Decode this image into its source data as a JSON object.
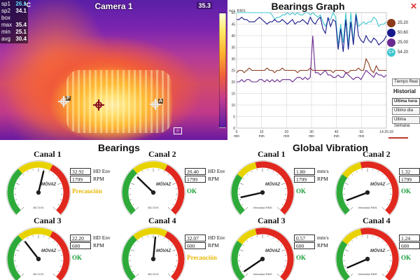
{
  "camera": {
    "title": "Camera 1",
    "unit": "°C",
    "top_right_value": "35.3",
    "readouts": [
      {
        "label": "sp1",
        "value": "26.1"
      },
      {
        "label": "sp2",
        "value": "34.1"
      },
      {
        "label": "box",
        "value": ""
      },
      {
        "label": "max",
        "value": "35.4"
      },
      {
        "label": "min",
        "value": "25.1"
      },
      {
        "label": "avg",
        "value": "30.4"
      }
    ],
    "spot_labels": [
      "P",
      "A"
    ]
  },
  "bearings_graph": {
    "title": "Bearings Graph",
    "y_axis_label": "m/s RMS",
    "close_icon": "close-icon",
    "legend": [
      {
        "value": "25.20",
        "color": "#8b3a1a"
      },
      {
        "value": "50.60",
        "color": "#1a1a8c"
      },
      {
        "value": "25.00",
        "color": "#6a2a90"
      },
      {
        "value": "54.20",
        "color": "#3fc7cf"
      }
    ],
    "legend_tag": "C4",
    "buttons": [
      {
        "label": "Tiempo Real",
        "active": false
      },
      {
        "label": "Última hora",
        "active": true
      },
      {
        "label": "Último día",
        "active": false
      },
      {
        "label": "Última Semana",
        "active": false
      }
    ],
    "historial_label": "Historial",
    "chart_data": {
      "type": "line",
      "x_ticks": [
        "0\nmin",
        "10\nmin",
        "20\nmin",
        "30\nmin",
        "40\nmin",
        "50\nmin",
        "14:25:18"
      ],
      "y_ticks": [
        "50",
        "45",
        "40",
        "35",
        "30",
        "25",
        "20",
        "15",
        "10",
        "5",
        "0"
      ],
      "ylim": [
        0,
        50
      ],
      "grid": true,
      "series": [
        {
          "color": "#3fc7cf",
          "values": [
            50,
            50,
            50,
            50,
            50,
            50,
            50,
            50,
            50,
            50,
            50,
            50,
            50,
            50,
            49,
            47,
            48,
            48,
            49,
            49,
            50,
            49,
            50,
            49,
            50,
            49,
            49,
            50,
            50,
            49,
            50,
            49,
            48,
            49,
            46,
            44,
            47,
            47,
            50,
            48,
            36,
            45,
            37,
            50,
            36,
            50,
            37,
            50,
            44,
            45,
            46,
            45,
            46,
            46,
            48,
            47,
            44,
            45,
            45,
            46
          ]
        },
        {
          "color": "#1a1a8c",
          "values": [
            47,
            47,
            48,
            47,
            47,
            46,
            46,
            46,
            47,
            48,
            47,
            46,
            45,
            46,
            46,
            47,
            46,
            46,
            47,
            46,
            45,
            46,
            47,
            45,
            46,
            46,
            47,
            46,
            45,
            48,
            46,
            45,
            47,
            48,
            43,
            41,
            48,
            44,
            47,
            46,
            34,
            43,
            33,
            47,
            34,
            46,
            36,
            49,
            40,
            38,
            37,
            40,
            38,
            37,
            39,
            38,
            36,
            37,
            38,
            40
          ]
        },
        {
          "color": "#8b3a1a",
          "values": [
            24,
            25,
            25,
            24,
            25,
            26,
            25,
            25,
            25,
            25,
            25,
            25,
            26,
            25,
            25,
            24,
            25,
            25,
            26,
            25,
            25,
            25,
            25,
            25,
            24,
            25,
            25,
            25,
            25,
            26,
            25,
            25,
            25,
            25,
            25,
            25,
            25,
            25,
            24,
            25,
            25,
            25,
            25,
            24,
            24,
            25,
            25,
            25,
            26,
            25,
            25,
            30,
            28,
            25,
            24,
            27,
            25,
            25,
            25,
            25
          ]
        },
        {
          "color": "#6a2a90",
          "values": [
            20,
            20,
            21,
            20,
            21,
            21,
            20,
            20,
            20,
            21,
            21,
            20,
            21,
            20,
            21,
            20,
            21,
            20,
            21,
            21,
            21,
            21,
            20,
            21,
            22,
            22,
            21,
            22,
            21,
            22,
            40,
            24,
            24,
            23,
            24,
            25,
            23,
            23,
            22,
            22,
            23,
            22,
            22,
            24,
            23,
            22,
            21,
            22,
            22,
            21,
            23,
            25,
            24,
            23,
            22,
            24,
            23,
            23,
            22,
            23
          ]
        }
      ]
    }
  },
  "sections": {
    "bearings_title": "Bearings",
    "global_title": "Global Vibration"
  },
  "gauges": [
    {
      "channel": "Canal 1",
      "value": "32.92",
      "unit": "HD Env",
      "rpm": "1799",
      "rpm_unit": "RPM",
      "status": "Precaución",
      "status_color": "#e8b800",
      "type": "bearing",
      "level": 0.55
    },
    {
      "channel": "Canal 2",
      "value": "20.40",
      "unit": "HD Env",
      "rpm": "1799",
      "rpm_unit": "RPM",
      "status": "OK",
      "status_color": "#1b9e3a",
      "type": "bearing",
      "level": 0.33
    },
    {
      "channel": "Canal 1",
      "value": "1.80",
      "unit": "mm/s",
      "rpm": "1799",
      "rpm_unit": "RPM",
      "status": "OK",
      "status_color": "#1b9e3a",
      "type": "velocity",
      "level": 0.12
    },
    {
      "channel": "Canal 2",
      "value": "1.32",
      "unit": "mm/s",
      "rpm": "1799",
      "rpm_unit": "RPM",
      "status": "OK",
      "status_color": "#1b9e3a",
      "type": "velocity",
      "level": 0.09
    },
    {
      "channel": "Canal 3",
      "value": "22.20",
      "unit": "HD Env",
      "rpm": "600",
      "rpm_unit": "RPM",
      "status": "OK",
      "status_color": "#1b9e3a",
      "type": "bearing",
      "level": 0.36
    },
    {
      "channel": "Canal 4",
      "value": "32.07",
      "unit": "HD Env",
      "rpm": "600",
      "rpm_unit": "RPM",
      "status": "Precaución",
      "status_color": "#e8b800",
      "type": "bearing",
      "level": 0.52
    },
    {
      "channel": "Canal 3",
      "value": "0.57",
      "unit": "mm/s",
      "rpm": "600",
      "rpm_unit": "RPM",
      "status": "OK",
      "status_color": "#1b9e3a",
      "type": "velocity",
      "level": 0.04
    },
    {
      "channel": "Canal 4",
      "value": "1.24",
      "unit": "mm/s",
      "rpm": "600",
      "rpm_unit": "RPM",
      "status": "OK",
      "status_color": "#1b9e3a",
      "type": "velocity",
      "level": 0.08
    }
  ],
  "gauge_labels": {
    "brand": "MÖVAZ",
    "bearing_sub": "BD DVS",
    "velocity_sub": "Velocidad RMS"
  }
}
